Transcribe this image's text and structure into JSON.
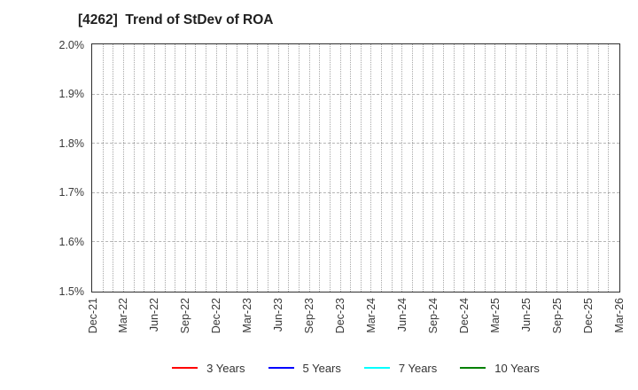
{
  "chart_data": {
    "type": "line",
    "title": "[4262]  Trend of StDev of ROA",
    "x_categories": [
      "Dec-21",
      "Mar-22",
      "Jun-22",
      "Sep-22",
      "Dec-22",
      "Mar-23",
      "Jun-23",
      "Sep-23",
      "Dec-23",
      "Mar-24",
      "Jun-24",
      "Sep-24",
      "Dec-24",
      "Mar-25",
      "Jun-25",
      "Sep-25",
      "Dec-25",
      "Mar-26"
    ],
    "x_minor_divisions": 3,
    "ylim": [
      1.5,
      2.0
    ],
    "y_unit": "%",
    "y_ticks": [
      {
        "value": 2.0,
        "label": "2.0%"
      },
      {
        "value": 1.9,
        "label": "1.9%"
      },
      {
        "value": 1.8,
        "label": "1.8%"
      },
      {
        "value": 1.7,
        "label": "1.7%"
      },
      {
        "value": 1.6,
        "label": "1.6%"
      },
      {
        "value": 1.5,
        "label": "1.5%"
      }
    ],
    "grid": true,
    "legend_position": "bottom",
    "series": [
      {
        "name": "3 Years",
        "color": "#ff0000",
        "values": []
      },
      {
        "name": "5 Years",
        "color": "#0000ff",
        "values": []
      },
      {
        "name": "7 Years",
        "color": "#00ffff",
        "values": []
      },
      {
        "name": "10 Years",
        "color": "#008000",
        "values": []
      }
    ]
  }
}
